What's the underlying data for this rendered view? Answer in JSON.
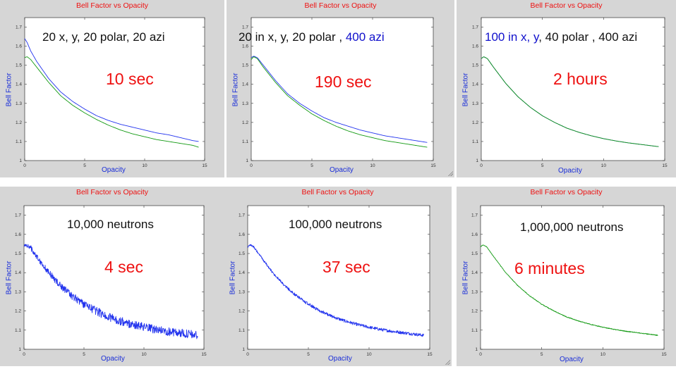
{
  "panels": [
    {
      "title": "Bell Factor vs Opacity",
      "xlabel": "Opacity",
      "ylabel": "Bell Factor",
      "note_parts": [
        {
          "text": "20 x, y, 20 polar, 20 azi",
          "highlight": false
        }
      ],
      "time": "10 sec"
    },
    {
      "title": "Bell Factor vs Opacity",
      "xlabel": "Opacity",
      "ylabel": "Bell Factor",
      "note_parts": [
        {
          "text": "20 in x, y, 20 polar , ",
          "highlight": false
        },
        {
          "text": "400 azi",
          "highlight": true
        }
      ],
      "time": "190 sec"
    },
    {
      "title": "Bell Factor vs Opacity",
      "xlabel": "Opacity",
      "ylabel": "Bell Factor",
      "note_parts": [
        {
          "text": "100 in x, y",
          "highlight": true
        },
        {
          "text": ", 40 polar , 400 azi",
          "highlight": false
        }
      ],
      "time": "2 hours"
    },
    {
      "title": "Bell Factor vs Opacity",
      "xlabel": "Opacity",
      "ylabel": "Bell Factor",
      "note_parts": [
        {
          "text": "10,000 neutrons",
          "highlight": false
        }
      ],
      "time": "4 sec"
    },
    {
      "title": "Bell Factor vs Opacity",
      "xlabel": "Opacity",
      "ylabel": "Bell Factor",
      "note_parts": [
        {
          "text": "100,000 neutrons",
          "highlight": false
        }
      ],
      "time": "37 sec"
    },
    {
      "title": "Bell Factor vs Opacity",
      "xlabel": "Opacity",
      "ylabel": "Bell Factor",
      "note_parts": [
        {
          "text": "1,000,000 neutrons",
          "highlight": false
        }
      ],
      "time": "6 minutes"
    }
  ],
  "colors": {
    "title": "#ee1111",
    "axis_label": "#1a2ed8",
    "series_blue": "#2233ee",
    "series_green": "#119911",
    "highlight": "#1010cc",
    "time": "#ee1111"
  },
  "chart_data": [
    {
      "type": "line",
      "title": "Bell Factor vs Opacity",
      "xlabel": "Opacity",
      "ylabel": "Bell Factor",
      "xlim": [
        0,
        15
      ],
      "ylim": [
        1,
        1.75
      ],
      "xticks": [
        "0",
        "5",
        "10",
        "15"
      ],
      "yticks": [
        "1",
        "1.1",
        "1.2",
        "1.3",
        "1.4",
        "1.5",
        "1.6",
        "1.7"
      ],
      "series": [
        {
          "color": "blue",
          "style": "smooth",
          "x": [
            0,
            0.2,
            0.5,
            1,
            2,
            3,
            4,
            5,
            6,
            7,
            8,
            9,
            10,
            11,
            12,
            13,
            14,
            14.5
          ],
          "y": [
            1.64,
            1.62,
            1.575,
            1.52,
            1.43,
            1.36,
            1.31,
            1.27,
            1.235,
            1.21,
            1.19,
            1.175,
            1.16,
            1.145,
            1.135,
            1.12,
            1.105,
            1.1
          ]
        },
        {
          "color": "green",
          "style": "smooth",
          "x": [
            0,
            0.2,
            0.5,
            1,
            2,
            3,
            4,
            5,
            6,
            7,
            8,
            9,
            10,
            11,
            12,
            13,
            14,
            14.5
          ],
          "y": [
            1.54,
            1.545,
            1.53,
            1.49,
            1.41,
            1.34,
            1.29,
            1.25,
            1.215,
            1.185,
            1.16,
            1.14,
            1.125,
            1.11,
            1.1,
            1.09,
            1.08,
            1.07
          ]
        }
      ]
    },
    {
      "type": "line",
      "title": "Bell Factor vs Opacity",
      "xlabel": "Opacity",
      "ylabel": "Bell Factor",
      "xlim": [
        0,
        15
      ],
      "ylim": [
        1,
        1.75
      ],
      "xticks": [
        "0",
        "5",
        "10",
        "15"
      ],
      "yticks": [
        "1",
        "1.1",
        "1.2",
        "1.3",
        "1.4",
        "1.5",
        "1.6",
        "1.7"
      ],
      "series": [
        {
          "color": "blue",
          "style": "smooth",
          "x": [
            0,
            0.2,
            0.5,
            1,
            2,
            3,
            4,
            5,
            6,
            7,
            8,
            9,
            10,
            11,
            12,
            13,
            14,
            14.5
          ],
          "y": [
            1.54,
            1.548,
            1.54,
            1.5,
            1.42,
            1.35,
            1.3,
            1.26,
            1.225,
            1.2,
            1.18,
            1.16,
            1.145,
            1.13,
            1.12,
            1.11,
            1.1,
            1.095
          ]
        },
        {
          "color": "green",
          "style": "smooth",
          "x": [
            0,
            0.2,
            0.5,
            1,
            2,
            3,
            4,
            5,
            6,
            7,
            8,
            9,
            10,
            11,
            12,
            13,
            14,
            14.5
          ],
          "y": [
            1.53,
            1.545,
            1.535,
            1.49,
            1.41,
            1.34,
            1.29,
            1.245,
            1.21,
            1.18,
            1.155,
            1.135,
            1.12,
            1.105,
            1.095,
            1.085,
            1.075,
            1.07
          ]
        }
      ]
    },
    {
      "type": "line",
      "title": "Bell Factor vs Opacity",
      "xlabel": "Opacity",
      "ylabel": "Bell Factor",
      "xlim": [
        0,
        15
      ],
      "ylim": [
        1,
        1.75
      ],
      "xticks": [
        "0",
        "5",
        "10",
        "15"
      ],
      "yticks": [
        "1",
        "1.1",
        "1.2",
        "1.3",
        "1.4",
        "1.5",
        "1.6",
        "1.7"
      ],
      "series": [
        {
          "color": "blue",
          "style": "smooth",
          "x": [
            0,
            0.2,
            0.5,
            1,
            2,
            3,
            4,
            5,
            6,
            7,
            8,
            9,
            10,
            11,
            12,
            13,
            14,
            14.5
          ],
          "y": [
            1.535,
            1.545,
            1.535,
            1.49,
            1.405,
            1.335,
            1.28,
            1.235,
            1.2,
            1.17,
            1.148,
            1.13,
            1.115,
            1.103,
            1.093,
            1.085,
            1.077,
            1.073
          ]
        },
        {
          "color": "green",
          "style": "smooth",
          "x": [
            0,
            0.2,
            0.5,
            1,
            2,
            3,
            4,
            5,
            6,
            7,
            8,
            9,
            10,
            11,
            12,
            13,
            14,
            14.5
          ],
          "y": [
            1.535,
            1.545,
            1.535,
            1.49,
            1.405,
            1.335,
            1.28,
            1.235,
            1.2,
            1.17,
            1.148,
            1.13,
            1.115,
            1.103,
            1.093,
            1.085,
            1.077,
            1.073
          ]
        }
      ]
    },
    {
      "type": "line",
      "title": "Bell Factor vs Opacity",
      "xlabel": "Opacity",
      "ylabel": "Bell Factor",
      "xlim": [
        0,
        15
      ],
      "ylim": [
        1,
        1.75
      ],
      "xticks": [
        "0",
        "5",
        "10",
        "15"
      ],
      "yticks": [
        "1",
        "1.1",
        "1.2",
        "1.3",
        "1.4",
        "1.5",
        "1.6",
        "1.7"
      ],
      "series": [
        {
          "color": "blue",
          "style": "noisy",
          "noise_amplitude": 0.022,
          "x": [
            0,
            0.2,
            0.5,
            1,
            2,
            3,
            4,
            5,
            6,
            7,
            8,
            9,
            10,
            11,
            12,
            13,
            14,
            14.5
          ],
          "y": [
            1.535,
            1.545,
            1.535,
            1.49,
            1.405,
            1.335,
            1.28,
            1.235,
            1.2,
            1.17,
            1.148,
            1.13,
            1.115,
            1.103,
            1.093,
            1.085,
            1.077,
            1.073
          ]
        }
      ]
    },
    {
      "type": "line",
      "title": "Bell Factor vs Opacity",
      "xlabel": "Opacity",
      "ylabel": "Bell Factor",
      "xlim": [
        0,
        15
      ],
      "ylim": [
        1,
        1.75
      ],
      "xticks": [
        "0",
        "5",
        "10",
        "15"
      ],
      "yticks": [
        "1",
        "1.1",
        "1.2",
        "1.3",
        "1.4",
        "1.5",
        "1.6",
        "1.7"
      ],
      "series": [
        {
          "color": "blue",
          "style": "noisy",
          "noise_amplitude": 0.008,
          "x": [
            0,
            0.2,
            0.5,
            1,
            2,
            3,
            4,
            5,
            6,
            7,
            8,
            9,
            10,
            11,
            12,
            13,
            14,
            14.5
          ],
          "y": [
            1.535,
            1.545,
            1.535,
            1.49,
            1.405,
            1.335,
            1.28,
            1.235,
            1.2,
            1.17,
            1.148,
            1.13,
            1.115,
            1.103,
            1.093,
            1.085,
            1.077,
            1.073
          ]
        }
      ]
    },
    {
      "type": "line",
      "title": "Bell Factor vs Opacity",
      "xlabel": "Opacity",
      "ylabel": "Bell Factor",
      "xlim": [
        0,
        15
      ],
      "ylim": [
        1,
        1.75
      ],
      "xticks": [
        "0",
        "5",
        "10",
        "15"
      ],
      "yticks": [
        "1",
        "1.1",
        "1.2",
        "1.3",
        "1.4",
        "1.5",
        "1.6",
        "1.7"
      ],
      "series": [
        {
          "color": "green",
          "style": "noisy",
          "noise_amplitude": 0.002,
          "x": [
            0,
            0.2,
            0.5,
            1,
            2,
            3,
            4,
            5,
            6,
            7,
            8,
            9,
            10,
            11,
            12,
            13,
            14,
            14.5
          ],
          "y": [
            1.535,
            1.545,
            1.535,
            1.49,
            1.405,
            1.335,
            1.28,
            1.235,
            1.2,
            1.17,
            1.148,
            1.13,
            1.115,
            1.103,
            1.093,
            1.085,
            1.077,
            1.073
          ]
        }
      ]
    }
  ]
}
